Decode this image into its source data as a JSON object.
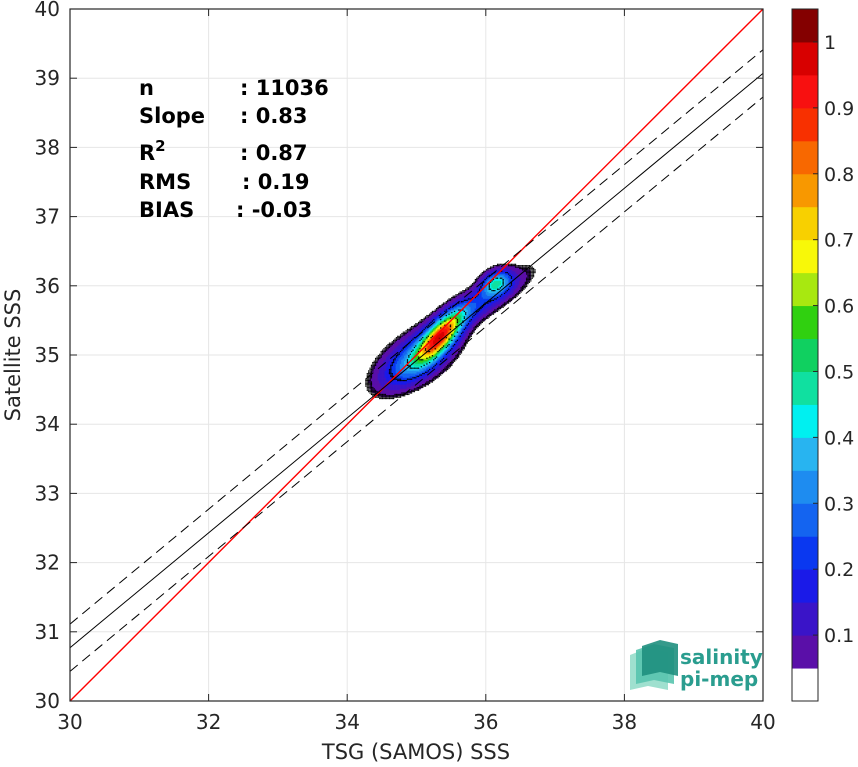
{
  "chart_data": {
    "type": "heatmap",
    "xlabel": "TSG (SAMOS) SSS",
    "ylabel": "Satellite SSS",
    "xlim": [
      30,
      40
    ],
    "ylim": [
      30,
      40
    ],
    "xticks": [
      30,
      32,
      34,
      36,
      38,
      40
    ],
    "yticks": [
      30,
      31,
      32,
      33,
      34,
      35,
      36,
      37,
      38,
      39,
      40
    ],
    "grid": true,
    "stats": [
      {
        "label": "n",
        "value": ": 11036"
      },
      {
        "label": "Slope",
        "value": ": 0.83"
      },
      {
        "label": "R",
        "sup": "2",
        "value": ": 0.87"
      },
      {
        "label": "RMS",
        "value": ": 0.19"
      },
      {
        "label": "BIAS",
        "value": ": -0.03"
      }
    ],
    "lines": {
      "identity": {
        "slope": 1,
        "intercept": 0,
        "color": "#ff0000"
      },
      "fit": {
        "slope": 0.83,
        "intercept": 5.87,
        "color": "#000000"
      },
      "fit_band_offset": 0.82
    },
    "density_clusters": [
      {
        "cx": 35.35,
        "cy": 35.28,
        "sx": 0.22,
        "sy": 0.24,
        "rho": 0.75,
        "amp": 1.0
      },
      {
        "cx": 35.0,
        "cy": 34.95,
        "sx": 0.35,
        "sy": 0.28,
        "rho": 0.6,
        "amp": 0.45
      },
      {
        "cx": 35.9,
        "cy": 35.75,
        "sx": 0.45,
        "sy": 0.3,
        "rho": 0.85,
        "amp": 0.25
      },
      {
        "cx": 36.15,
        "cy": 36.05,
        "sx": 0.14,
        "sy": 0.12,
        "rho": 0.3,
        "amp": 0.5
      }
    ],
    "colorbar": {
      "ticks": [
        0.1,
        0.2,
        0.3,
        0.4,
        0.5,
        0.6,
        0.7,
        0.8,
        0.9,
        1
      ],
      "tick_labels": [
        "0.1",
        "0.2",
        "0.3",
        "0.4",
        "0.5",
        "0.6",
        "0.7",
        "0.8",
        "0.9",
        "1"
      ],
      "levels": [
        0.05,
        0.1,
        0.15,
        0.2,
        0.25,
        0.3,
        0.35,
        0.4,
        0.45,
        0.5,
        0.55,
        0.6,
        0.65,
        0.7,
        0.75,
        0.8,
        0.85,
        0.9,
        0.95,
        1.0
      ],
      "colors": [
        "#ffffff",
        "#5a0fa8",
        "#3a14c8",
        "#1a1ae8",
        "#0a38f0",
        "#1464f0",
        "#1e8cf0",
        "#28b4f0",
        "#00f0f0",
        "#10e0a0",
        "#10d060",
        "#30d010",
        "#a8e810",
        "#f8f808",
        "#f8d000",
        "#f89800",
        "#f86800",
        "#f83000",
        "#f81010",
        "#d80000",
        "#840000"
      ]
    }
  },
  "logo": {
    "line1": "salinity",
    "line2": "pi-mep"
  }
}
